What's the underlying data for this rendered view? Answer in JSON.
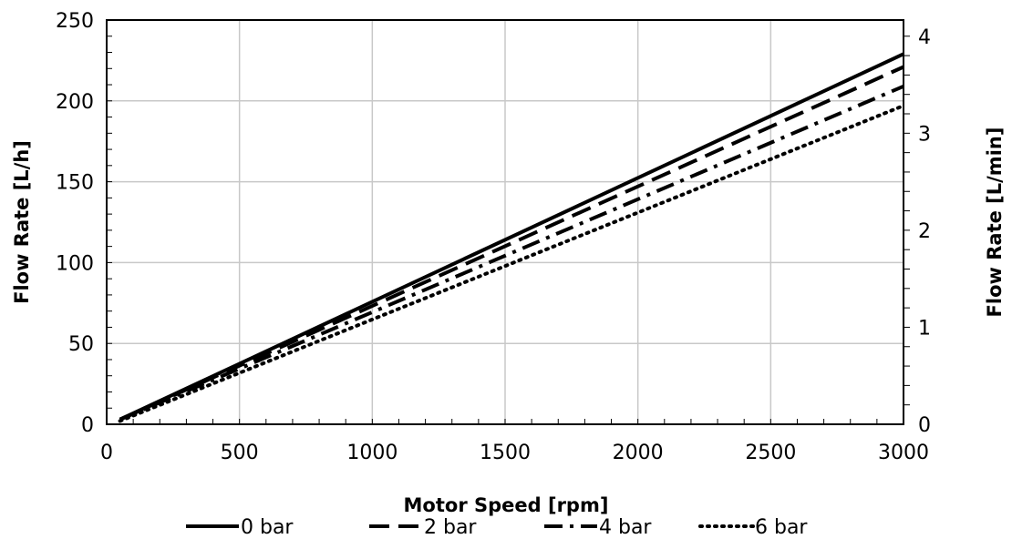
{
  "chart_data": {
    "type": "line",
    "title": "",
    "xlabel": "Motor Speed [rpm]",
    "ylabel": "Flow Rate [L/h]",
    "y2label": "Flow Rate [L/min]",
    "xlim": [
      0,
      3000
    ],
    "ylim": [
      0,
      250
    ],
    "y2lim": [
      0,
      4.1667
    ],
    "x_ticks": [
      "0",
      "500",
      "1000",
      "1500",
      "2000",
      "2500",
      "3000"
    ],
    "y_ticks": [
      "0",
      "50",
      "100",
      "150",
      "200",
      "250"
    ],
    "y2_ticks": [
      "0",
      "1",
      "2",
      "3",
      "4"
    ],
    "grid": true,
    "legend_position": "bottom",
    "series": [
      {
        "name": "0 bar",
        "style": "solid",
        "x": [
          50,
          3000
        ],
        "y": [
          3,
          229
        ]
      },
      {
        "name": "2 bar",
        "style": "dashed",
        "x": [
          50,
          3000
        ],
        "y": [
          3,
          221
        ]
      },
      {
        "name": "4 bar",
        "style": "dash-dot",
        "x": [
          50,
          3000
        ],
        "y": [
          3,
          209
        ]
      },
      {
        "name": "6 bar",
        "style": "dotted",
        "x": [
          50,
          3000
        ],
        "y": [
          2,
          197
        ]
      }
    ]
  }
}
